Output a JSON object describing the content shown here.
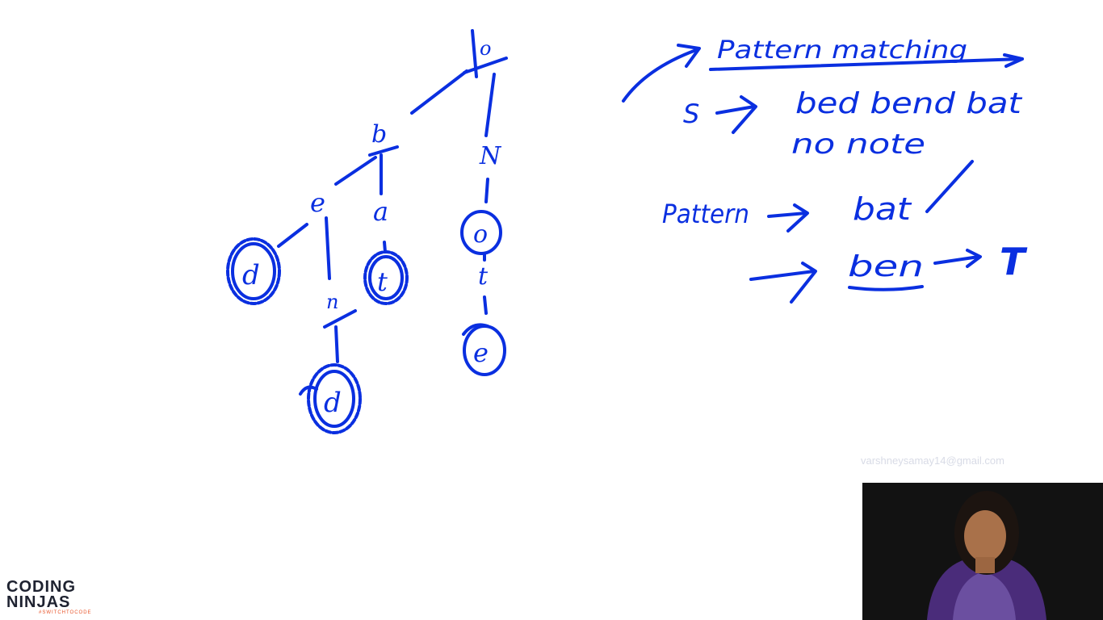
{
  "trie": {
    "root": "o",
    "nodes": {
      "b": "b",
      "e": "e",
      "d1": "d",
      "a": "a",
      "t1": "t",
      "n": "n",
      "d2": "d",
      "N": "N",
      "o": "o",
      "t2": "t",
      "e2": "e"
    }
  },
  "notes": {
    "title": "Pattern matching",
    "s_label": "S",
    "words_line1": "bed  bend  bat",
    "words_line2": "no  note",
    "pattern_label": "Pattern",
    "pattern_value": "bat",
    "query_value": "ben",
    "result": "T"
  },
  "overlay": {
    "watermark": "varshneysamay14@gmail.com",
    "logo_line1": "CODING",
    "logo_line2": "NINJAS",
    "logo_tagline": "#SWITCHTOCODE"
  },
  "colors": {
    "ink": "#0a2fe0",
    "logo_accent": "#e8542a"
  }
}
